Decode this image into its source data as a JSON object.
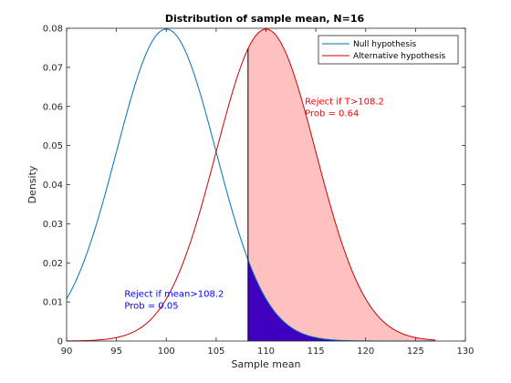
{
  "chart_data": {
    "type": "line",
    "title": "Distribution of sample mean, N=16",
    "xlabel": "Sample mean",
    "ylabel": "Density",
    "xlim": [
      90,
      130
    ],
    "ylim": [
      0,
      0.08
    ],
    "x_ticks": [
      "90",
      "95",
      "100",
      "105",
      "110",
      "115",
      "120",
      "125",
      "130"
    ],
    "y_ticks": [
      "0",
      "0.01",
      "0.02",
      "0.03",
      "0.04",
      "0.05",
      "0.06",
      "0.07",
      "0.08"
    ],
    "x_data_end": 127,
    "threshold": 108.2,
    "series": [
      {
        "name": "Null hypothesis",
        "mean": 100,
        "sd": 5,
        "color": "#0072BD"
      },
      {
        "name": "Alternative hypothesis",
        "mean": 110,
        "sd": 5,
        "color": "#D00000"
      }
    ],
    "shaded_regions": [
      {
        "series": "Alternative hypothesis",
        "from": 108.2,
        "to": 127,
        "color": "#FFC0C0"
      },
      {
        "series": "Null hypothesis",
        "from": 108.2,
        "to": 127,
        "color": "#3F00BF"
      }
    ],
    "annotations": [
      {
        "lines": [
          "Reject if T>108.2",
          "Prob = 0.64"
        ],
        "x": 113.9,
        "y": 0.0605,
        "color": "#FF0000"
      },
      {
        "lines": [
          "Reject if mean>108.2",
          "Prob = 0.05"
        ],
        "x": 95.8,
        "y": 0.0113,
        "color": "#0000FF"
      }
    ],
    "legend_position": "top-right",
    "grid": false
  }
}
